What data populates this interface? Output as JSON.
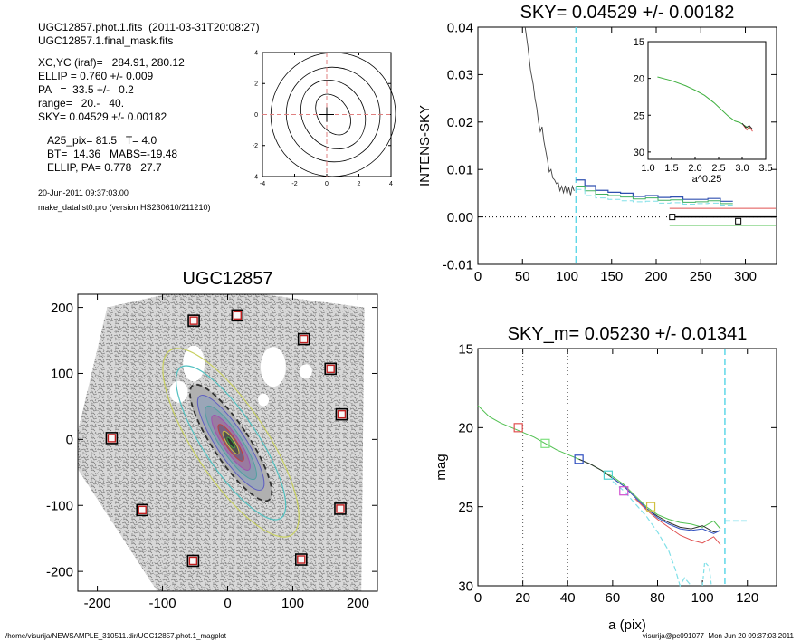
{
  "info": {
    "line1": "UGC12857.phot.1.fits  (2011-03-31T20:08:27)",
    "line2": "UGC12857.1.final_mask.fits",
    "line3": "XC,YC (iraf)=   284.91, 280.12",
    "line4": "ELLIP = 0.760 +/- 0.009",
    "line5": "PA   =  33.5 +/-   0.2",
    "line6": "range=   20.-   40.",
    "line7": "SKY= 0.04529 +/- 0.00182",
    "line8": "A25_pix= 81.5   T= 4.0",
    "line9": "BT=  14.36   MABS=-19.48",
    "line10": "ELLIP, PA= 0.778   27.7",
    "date": "20-Jun-2011 09:37:03.00",
    "program": "make_datalist0.pro (version HS230610/211210)"
  },
  "footer": {
    "left": "/home/visurija/NEWSAMPLE_310511.dir/UGC12857.phot.1_magplot",
    "right": "visurija@pc091077  Mon Jun 20 09:37:03 2011"
  },
  "chart_data": [
    {
      "id": "mini-contour",
      "type": "contour",
      "xticks": [
        "-4",
        "-2",
        "0",
        "2",
        "4"
      ],
      "yticks": [
        "-4",
        "-2",
        "0",
        "2",
        "4"
      ],
      "xlim": [
        -4,
        4
      ],
      "ylim": [
        -4,
        4
      ]
    },
    {
      "id": "sky-profile",
      "type": "line",
      "title": "SKY= 0.04529 +/- 0.00182",
      "ylabel": "INTENS-SKY",
      "xticks": [
        "0",
        "50",
        "100",
        "150",
        "200",
        "250",
        "300"
      ],
      "yticks": [
        "-0.01",
        "0.00",
        "0.01",
        "0.02",
        "0.03",
        "0.04"
      ],
      "xlim": [
        0,
        335
      ],
      "ylim": [
        -0.01,
        0.04
      ],
      "profile": {
        "x": [
          53,
          56,
          59,
          62,
          64,
          66,
          68,
          70,
          72,
          74,
          76,
          78,
          80,
          82,
          84,
          86,
          88,
          90,
          92,
          94,
          96,
          98,
          100,
          102,
          104,
          106,
          108
        ],
        "y": [
          0.04,
          0.036,
          0.031,
          0.028,
          0.025,
          0.023,
          0.02,
          0.018,
          0.019,
          0.016,
          0.014,
          0.012,
          0.0095,
          0.01,
          0.0082,
          0.0078,
          0.007,
          0.0073,
          0.0055,
          0.0065,
          0.0051,
          0.0066,
          0.0048,
          0.0062,
          0.0046,
          0.0065,
          0.0055
        ]
      },
      "step_blue": {
        "x": [
          110,
          120,
          132,
          146,
          160,
          174,
          188,
          202,
          216,
          230,
          244,
          258,
          272
        ],
        "y": [
          0.0078,
          0.0066,
          0.0056,
          0.0052,
          0.005,
          0.0043,
          0.0045,
          0.0041,
          0.0042,
          0.0037,
          0.0037,
          0.0039,
          0.0033
        ]
      },
      "step_green": {
        "x": [
          110,
          120,
          132,
          146,
          160,
          174,
          188,
          202,
          216,
          230,
          244,
          258,
          272
        ],
        "y": [
          0.0065,
          0.0055,
          0.0048,
          0.0045,
          0.0042,
          0.0038,
          0.004,
          0.0035,
          0.0036,
          0.0031,
          0.0032,
          0.0034,
          0.0028
        ]
      },
      "step_cyan_dash": {
        "x": [
          110,
          120,
          132,
          146,
          160,
          174,
          188,
          202,
          216,
          230,
          244,
          258,
          272
        ],
        "y": [
          0.0058,
          0.0045,
          0.004,
          0.0037,
          0.0034,
          0.0032,
          0.0033,
          0.0029,
          0.003,
          0.0027,
          0.0028,
          0.0029,
          0.0025
        ]
      },
      "sky_lines": [
        {
          "color": "#e05050",
          "x": [
            215,
            335
          ],
          "y": 0.0018
        },
        {
          "color": "#000000",
          "x": [
            215,
            335
          ],
          "y": 0.0
        },
        {
          "color": "#50c050",
          "x": [
            215,
            335
          ],
          "y": -0.0018
        }
      ],
      "squares": [
        {
          "x": 218,
          "y": 0.0
        },
        {
          "x": 292,
          "y": -0.0009
        }
      ],
      "vline": 110,
      "inset": {
        "xlabel": "a^0.25",
        "xticks": [
          "1.0",
          "1.5",
          "2.0",
          "2.5",
          "3.0",
          "3.5"
        ],
        "yticks": [
          "15",
          "20",
          "25",
          "30"
        ],
        "xlim": [
          1.0,
          3.5
        ],
        "ylim": [
          15,
          31
        ],
        "x": [
          1.2,
          1.5,
          1.8,
          2.0,
          2.2,
          2.4,
          2.55,
          2.7,
          2.85,
          2.95,
          3.05,
          3.12,
          3.2
        ],
        "y": [
          19.8,
          20.3,
          21.0,
          21.6,
          22.3,
          23.3,
          24.2,
          25.1,
          25.8,
          26.0,
          26.4,
          26.7,
          26.9
        ]
      }
    },
    {
      "id": "ugc-image",
      "type": "image",
      "title": "UGC12857",
      "xticks": [
        "-200",
        "-100",
        "0",
        "100",
        "200"
      ],
      "yticks": [
        "-200",
        "-100",
        "0",
        "100",
        "200"
      ],
      "xlim": [
        -230,
        230
      ],
      "ylim": [
        -230,
        220
      ],
      "stars": [
        {
          "x": -52,
          "y": 180
        },
        {
          "x": 15,
          "y": 188
        },
        {
          "x": 117,
          "y": 152
        },
        {
          "x": 158,
          "y": 107
        },
        {
          "x": 175,
          "y": 38
        },
        {
          "x": -178,
          "y": 2
        },
        {
          "x": -131,
          "y": -107
        },
        {
          "x": 173,
          "y": -105
        },
        {
          "x": -53,
          "y": -184
        },
        {
          "x": 113,
          "y": -182
        }
      ]
    },
    {
      "id": "mag-profile",
      "type": "line",
      "title": "SKY_m=  0.05230 +/- 0.01341",
      "xlabel": "a (pix)",
      "ylabel": "mag",
      "xticks": [
        "0",
        "20",
        "40",
        "60",
        "80",
        "100",
        "120"
      ],
      "yticks": [
        "15",
        "20",
        "25",
        "30"
      ],
      "xlim": [
        0,
        133
      ],
      "ylim": [
        15,
        30
      ],
      "series": [
        {
          "color": "#50c050",
          "x": [
            0,
            5,
            10,
            15,
            20,
            25,
            30,
            35,
            40,
            45,
            50,
            55,
            60,
            65,
            70,
            75,
            80,
            85,
            90,
            95,
            100,
            105,
            108
          ],
          "y": [
            18.6,
            19.3,
            19.7,
            20.0,
            20.3,
            20.6,
            21.0,
            21.4,
            21.7,
            22.0,
            22.3,
            22.7,
            23.1,
            23.6,
            24.3,
            25.0,
            25.5,
            25.8,
            26.0,
            26.1,
            26.3,
            25.9,
            26.4
          ]
        },
        {
          "color": "#303030",
          "x": [
            45,
            50,
            55,
            60,
            65,
            70,
            75,
            80,
            85,
            90,
            95,
            100,
            105,
            108
          ],
          "y": [
            22.0,
            22.3,
            22.7,
            23.2,
            23.7,
            24.4,
            25.1,
            25.6,
            26.0,
            26.3,
            26.4,
            26.2,
            26.6,
            26.5
          ]
        },
        {
          "color": "#3050c0",
          "x": [
            60,
            65,
            70,
            75,
            80,
            85,
            90,
            95,
            100,
            105,
            108
          ],
          "y": [
            23.2,
            23.7,
            24.4,
            25.1,
            25.7,
            26.1,
            26.4,
            26.5,
            26.4,
            26.7,
            26.5
          ]
        },
        {
          "color": "#e05050",
          "x": [
            70,
            75,
            80,
            85,
            90,
            95,
            100,
            105,
            108
          ],
          "y": [
            24.5,
            25.2,
            25.8,
            26.3,
            26.8,
            27.1,
            27.3,
            26.9,
            27.4
          ]
        }
      ],
      "cyan_dash": {
        "x": [
          60,
          65,
          70,
          75,
          80,
          85,
          88,
          90,
          92,
          95
        ],
        "y": [
          23.4,
          24.0,
          24.8,
          25.6,
          26.6,
          27.8,
          29.0,
          30.0,
          29.5,
          30.0
        ]
      },
      "vlines_dotted": [
        20,
        40
      ],
      "vline_dashed": 110,
      "markers": [
        {
          "x": 18,
          "y": 20.0,
          "color": "#e05050"
        },
        {
          "x": 30,
          "y": 21.0,
          "color": "#80e080"
        },
        {
          "x": 45,
          "y": 22.0,
          "color": "#3050c0"
        },
        {
          "x": 58,
          "y": 23.0,
          "color": "#50d0d0"
        },
        {
          "x": 65,
          "y": 24.0,
          "color": "#d050d0"
        },
        {
          "x": 77,
          "y": 25.0,
          "color": "#d0c040"
        }
      ]
    }
  ]
}
